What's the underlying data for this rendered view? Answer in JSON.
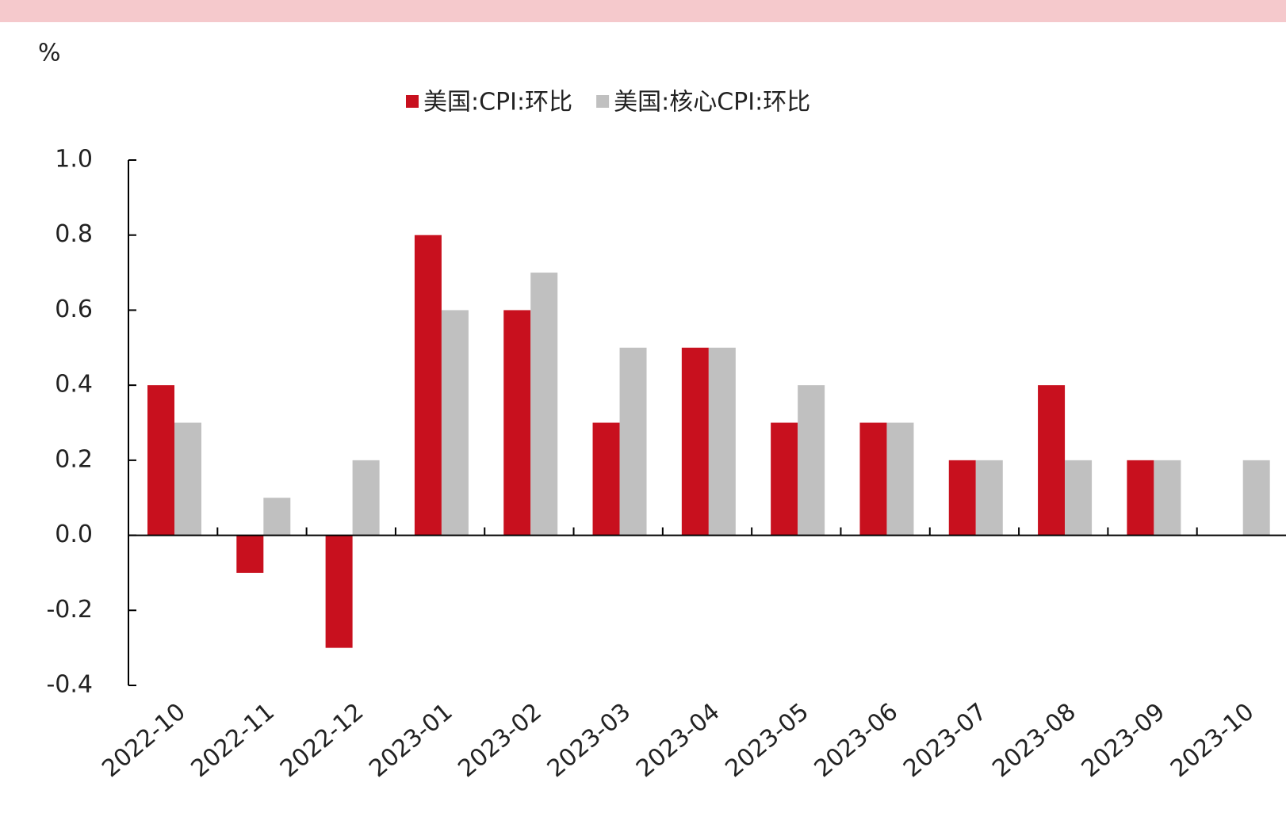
{
  "chart_data": {
    "type": "bar",
    "y_unit": "%",
    "categories": [
      "2022-10",
      "2022-11",
      "2022-12",
      "2023-01",
      "2023-02",
      "2023-03",
      "2023-04",
      "2023-05",
      "2023-06",
      "2023-07",
      "2023-08",
      "2023-09",
      "2023-10"
    ],
    "series": [
      {
        "name": "美国:CPI:环比",
        "color": "#c8101e",
        "values": [
          0.4,
          -0.1,
          -0.3,
          0.8,
          0.6,
          0.3,
          0.5,
          0.3,
          0.3,
          0.2,
          0.4,
          0.2,
          0.0
        ]
      },
      {
        "name": "美国:核心CPI:环比",
        "color": "#c0c0c0",
        "values": [
          0.3,
          0.1,
          0.2,
          0.6,
          0.7,
          0.5,
          0.5,
          0.4,
          0.3,
          0.2,
          0.2,
          0.2,
          0.2
        ]
      }
    ],
    "ylim": [
      -0.4,
      1.0
    ],
    "yticks": [
      -0.4,
      -0.2,
      {
        "value": 0,
        "label": "0.0"
      },
      0.2,
      0.4,
      0.6,
      0.8,
      {
        "value": 1,
        "label": "1.0"
      }
    ],
    "legend": "top"
  }
}
